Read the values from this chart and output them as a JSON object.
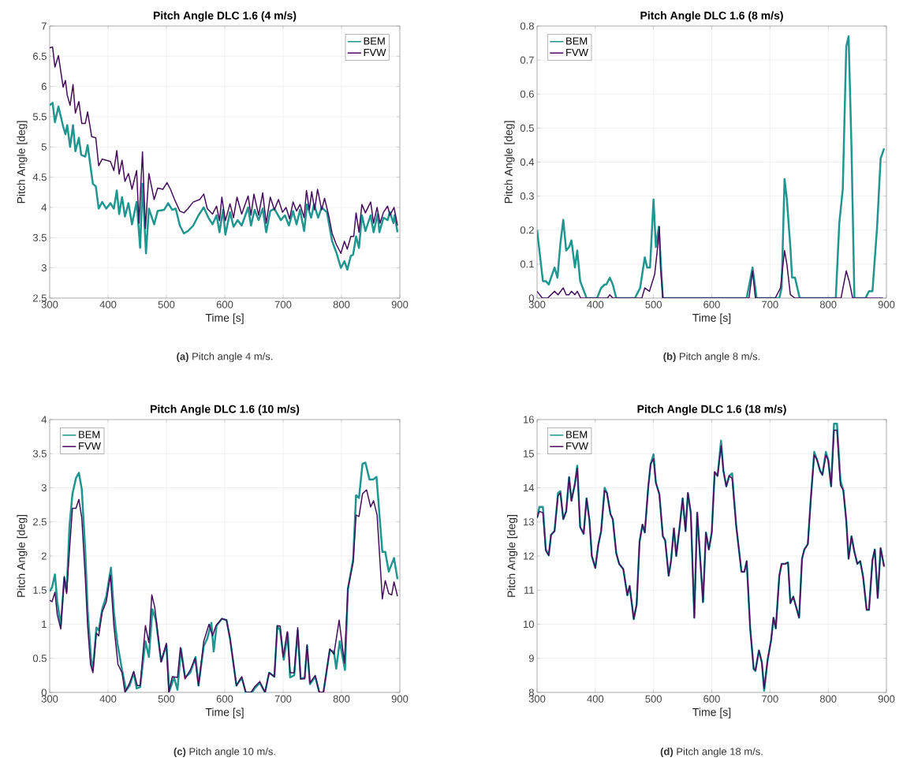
{
  "chart_data": [
    {
      "type": "line",
      "title": "Pitch Angle DLC 1.6 (4 m/s)",
      "xlabel": "Time [s]",
      "ylabel": "Pitch Angle [deg]",
      "annotations": [
        "**(a)** Pitch angle 4 m/s."
      ],
      "xlim": [
        300,
        900
      ],
      "ylim": [
        2.5,
        7
      ],
      "xticks": [
        300,
        400,
        500,
        600,
        700,
        800,
        900
      ],
      "yticks": [
        2.5,
        3,
        3.5,
        4,
        4.5,
        5,
        5.5,
        6,
        6.5,
        7
      ],
      "grid": true,
      "legend": "top right",
      "series": [
        {
          "name": "BEM",
          "color": "#209690",
          "x": [
            300,
            305,
            309,
            315,
            323,
            327,
            330,
            335,
            340,
            344,
            350,
            354,
            361,
            365,
            374,
            379,
            384,
            390,
            397,
            404,
            410,
            415,
            419,
            424,
            429,
            435,
            441,
            449,
            455,
            459,
            465,
            470,
            479,
            485,
            496,
            503,
            510,
            516,
            523,
            530,
            537,
            546,
            555,
            564,
            572,
            579,
            586,
            591,
            597,
            601,
            609,
            615,
            622,
            629,
            640,
            645,
            651,
            658,
            665,
            671,
            678,
            685,
            696,
            703,
            710,
            717,
            723,
            729,
            736,
            741,
            748,
            753,
            760,
            766,
            775,
            784,
            791,
            799,
            805,
            810,
            816,
            820,
            825,
            830,
            835,
            841,
            850,
            855,
            862,
            865,
            872,
            879,
            883,
            889,
            891,
            896
          ],
          "values": [
            5.69,
            5.73,
            5.41,
            5.67,
            5.34,
            5.21,
            5.36,
            5.0,
            5.36,
            4.93,
            5.15,
            4.87,
            4.84,
            5.03,
            4.39,
            4.35,
            3.98,
            4.09,
            3.98,
            4.07,
            3.98,
            4.28,
            3.89,
            4.17,
            3.85,
            4.07,
            3.72,
            4.09,
            3.33,
            4.39,
            3.24,
            3.98,
            3.72,
            3.94,
            3.96,
            4.07,
            3.96,
            3.98,
            3.7,
            3.57,
            3.61,
            3.7,
            3.87,
            4.0,
            3.83,
            3.72,
            3.87,
            3.59,
            3.96,
            3.55,
            3.92,
            3.68,
            3.79,
            3.7,
            4.0,
            3.7,
            3.96,
            3.79,
            3.98,
            3.59,
            3.94,
            3.98,
            3.79,
            3.87,
            3.7,
            3.94,
            3.72,
            3.96,
            3.61,
            4.05,
            3.83,
            4.05,
            3.83,
            4.0,
            3.92,
            3.44,
            3.26,
            3.0,
            3.11,
            2.97,
            3.2,
            3.22,
            3.52,
            3.33,
            3.87,
            3.61,
            3.87,
            3.59,
            3.89,
            3.59,
            3.83,
            3.79,
            3.92,
            3.74,
            3.87,
            3.59
          ]
        },
        {
          "name": "FVW",
          "color": "#450d5c",
          "x": [
            300,
            305,
            309,
            315,
            323,
            327,
            330,
            335,
            340,
            344,
            350,
            355,
            361,
            365,
            372,
            379,
            384,
            390,
            397,
            404,
            410,
            415,
            419,
            424,
            429,
            435,
            441,
            449,
            453,
            459,
            464,
            470,
            479,
            485,
            494,
            501,
            507,
            514,
            523,
            530,
            537,
            546,
            557,
            564,
            570,
            579,
            586,
            591,
            595,
            601,
            609,
            615,
            621,
            629,
            640,
            645,
            650,
            658,
            665,
            671,
            678,
            685,
            692,
            699,
            705,
            711,
            717,
            723,
            729,
            736,
            740,
            745,
            749,
            754,
            759,
            766,
            771,
            778,
            784,
            791,
            799,
            805,
            810,
            816,
            821,
            825,
            830,
            835,
            841,
            850,
            855,
            861,
            866,
            872,
            879,
            883,
            890,
            896
          ],
          "values": [
            6.64,
            6.65,
            6.32,
            6.51,
            5.99,
            6.1,
            5.86,
            5.69,
            6.03,
            5.56,
            5.75,
            5.39,
            5.39,
            5.58,
            5.17,
            5.15,
            4.69,
            4.8,
            4.78,
            4.76,
            4.61,
            4.94,
            4.55,
            4.78,
            4.43,
            4.56,
            4.3,
            4.61,
            3.74,
            4.92,
            3.65,
            4.56,
            4.13,
            4.32,
            4.3,
            4.41,
            4.3,
            4.13,
            3.94,
            3.91,
            3.98,
            4.09,
            4.13,
            4.22,
            3.98,
            3.89,
            4.02,
            3.78,
            4.17,
            3.78,
            4.06,
            3.83,
            4.17,
            3.89,
            4.19,
            3.87,
            4.22,
            3.87,
            4.24,
            3.74,
            4.17,
            3.96,
            4.13,
            3.92,
            4.0,
            3.81,
            4.09,
            3.94,
            4.05,
            3.83,
            4.28,
            3.96,
            4.26,
            3.96,
            4.3,
            3.96,
            4.15,
            3.87,
            3.57,
            3.39,
            3.24,
            3.44,
            3.31,
            3.52,
            3.52,
            3.91,
            3.59,
            4.05,
            3.91,
            4.09,
            3.74,
            4.0,
            3.74,
            3.92,
            4.02,
            3.87,
            4.0,
            3.7
          ]
        }
      ]
    },
    {
      "type": "line",
      "title": "Pitch Angle DLC 1.6 (8 m/s)",
      "xlabel": "Time [s]",
      "ylabel": "Pitch Angle [deg]",
      "annotations": [
        "**(b)** Pitch angle 8 m/s."
      ],
      "xlim": [
        300,
        900
      ],
      "ylim": [
        0,
        0.8
      ],
      "xticks": [
        300,
        400,
        500,
        600,
        700,
        800,
        900
      ],
      "yticks": [
        0,
        0.1,
        0.2,
        0.3,
        0.4,
        0.5,
        0.6,
        0.7,
        0.8
      ],
      "grid": true,
      "legend": "top left",
      "series": [
        {
          "name": "BEM",
          "color": "#209690",
          "x": [
            300,
            304,
            310,
            315,
            320,
            324,
            330,
            335,
            340,
            345,
            350,
            355,
            359,
            365,
            369,
            374,
            385,
            403,
            410,
            416,
            419,
            425,
            430,
            436,
            468,
            477,
            485,
            489,
            494,
            500,
            504,
            509,
            516,
            660,
            670,
            677,
            716,
            720,
            725,
            729,
            735,
            738,
            743,
            751,
            813,
            819,
            825,
            831,
            835,
            840,
            845,
            864,
            870,
            876,
            884,
            890,
            896
          ],
          "values": [
            0.2,
            0.14,
            0.05,
            0.05,
            0.04,
            0.06,
            0.09,
            0.06,
            0.16,
            0.23,
            0.14,
            0.15,
            0.17,
            0.09,
            0.14,
            0.05,
            0,
            0,
            0.03,
            0.04,
            0.04,
            0.06,
            0.04,
            0,
            0,
            0.03,
            0.12,
            0.09,
            0.09,
            0.29,
            0.15,
            0.21,
            0,
            0,
            0.09,
            0,
            0,
            0.03,
            0.35,
            0.29,
            0.15,
            0.06,
            0.06,
            0,
            0,
            0.22,
            0.32,
            0.74,
            0.77,
            0.44,
            0,
            0,
            0.02,
            0.02,
            0.21,
            0.41,
            0.44
          ]
        },
        {
          "name": "FVW",
          "color": "#450d5c",
          "x": [
            300,
            309,
            318,
            330,
            336,
            345,
            350,
            355,
            359,
            365,
            369,
            375,
            421,
            425,
            430,
            480,
            485,
            493,
            502,
            507,
            510,
            512,
            516,
            664,
            670,
            675,
            709,
            718,
            725,
            729,
            735,
            743,
            822,
            831,
            836,
            842,
            894
          ],
          "values": [
            0.02,
            0,
            0,
            0.02,
            0.01,
            0.03,
            0.01,
            0.01,
            0.02,
            0.01,
            0.02,
            0,
            0,
            0.01,
            0,
            0,
            0.03,
            0.02,
            0.07,
            0.15,
            0.21,
            0.09,
            0,
            0,
            0.08,
            0,
            0,
            0.03,
            0.14,
            0.1,
            0.01,
            0,
            0,
            0.08,
            0.05,
            0,
            0
          ]
        }
      ]
    },
    {
      "type": "line",
      "title": "Pitch Angle DLC 1.6 (10 m/s)",
      "xlabel": "Time [s]",
      "ylabel": "Pitch Angle [deg]",
      "annotations": [
        "**(c)** Pitch angle 10 m/s."
      ],
      "xlim": [
        300,
        900
      ],
      "ylim": [
        0,
        4
      ],
      "xticks": [
        300,
        400,
        500,
        600,
        700,
        800,
        900
      ],
      "yticks": [
        0,
        0.5,
        1,
        1.5,
        2,
        2.5,
        3,
        3.5,
        4
      ],
      "grid": true,
      "legend": "top left",
      "series": [
        {
          "name": "BEM",
          "color": "#209690",
          "x": [
            300,
            304,
            309,
            313,
            319,
            325,
            329,
            334,
            339,
            345,
            350,
            355,
            361,
            365,
            371,
            374,
            380,
            384,
            390,
            397,
            405,
            410,
            416,
            424,
            431,
            437,
            444,
            449,
            455,
            464,
            470,
            476,
            482,
            491,
            500,
            505,
            513,
            519,
            525,
            532,
            541,
            550,
            555,
            564,
            570,
            577,
            581,
            586,
            595,
            603,
            609,
            620,
            629,
            636,
            647,
            651,
            660,
            669,
            676,
            685,
            690,
            695,
            701,
            708,
            712,
            719,
            725,
            730,
            737,
            741,
            746,
            755,
            762,
            769,
            780,
            787,
            791,
            797,
            806,
            811,
            820,
            825,
            830,
            836,
            841,
            848,
            854,
            860,
            870,
            875,
            881,
            890,
            896
          ],
          "values": [
            1.48,
            1.54,
            1.73,
            1.33,
            0.98,
            1.68,
            1.48,
            2.45,
            2.91,
            3.14,
            3.22,
            2.98,
            2.06,
            1.22,
            0.48,
            0.33,
            0.95,
            0.91,
            1.22,
            1.41,
            1.83,
            1.18,
            0.72,
            0.33,
            0.03,
            0.1,
            0.29,
            0.06,
            0.08,
            0.75,
            0.52,
            1.22,
            1.06,
            0.45,
            0.7,
            0.02,
            0.22,
            0.04,
            0.64,
            0.22,
            0.29,
            0.52,
            0.1,
            0.68,
            0.79,
            1.02,
            0.6,
            0.98,
            1.08,
            1.06,
            0.79,
            0.1,
            0.22,
            0,
            0,
            0.06,
            0.14,
            0,
            0.29,
            0.23,
            0.97,
            0.91,
            0.48,
            0.87,
            0.22,
            0.25,
            0.91,
            0.2,
            0.22,
            0.68,
            0.12,
            0.23,
            0,
            0,
            0.62,
            0.6,
            0.35,
            0.75,
            0.33,
            1.52,
            1.95,
            2.89,
            2.85,
            3.35,
            3.37,
            3.12,
            3.12,
            3.16,
            2.06,
            2.06,
            1.77,
            1.97,
            1.66
          ]
        },
        {
          "name": "FVW",
          "color": "#450d5c",
          "x": [
            300,
            304,
            309,
            313,
            319,
            325,
            329,
            334,
            339,
            345,
            350,
            355,
            361,
            365,
            370,
            374,
            380,
            384,
            390,
            397,
            404,
            410,
            417,
            424,
            429,
            437,
            444,
            450,
            455,
            464,
            470,
            475,
            480,
            491,
            500,
            504,
            510,
            519,
            524,
            532,
            541,
            549,
            555,
            564,
            573,
            579,
            585,
            595,
            603,
            609,
            620,
            629,
            636,
            645,
            651,
            660,
            669,
            676,
            685,
            690,
            695,
            700,
            707,
            712,
            719,
            725,
            730,
            737,
            741,
            746,
            755,
            762,
            769,
            780,
            787,
            796,
            805,
            811,
            820,
            825,
            830,
            836,
            843,
            850,
            855,
            861,
            870,
            875,
            881,
            886,
            890,
            896
          ],
          "values": [
            1.35,
            1.33,
            1.47,
            1.14,
            0.93,
            1.7,
            1.45,
            2.1,
            2.7,
            2.7,
            2.83,
            2.56,
            1.68,
            0.98,
            0.41,
            0.29,
            0.87,
            0.83,
            1.18,
            1.33,
            1.72,
            0.98,
            0.41,
            0.29,
            0,
            0.14,
            0.31,
            0.1,
            0.1,
            0.98,
            0.73,
            1.43,
            1.25,
            0.45,
            0.72,
            0,
            0.23,
            0.22,
            0.66,
            0.2,
            0.33,
            0.5,
            0.1,
            0.75,
            1.0,
            0.83,
            0.98,
            1.08,
            1.06,
            0.79,
            0.1,
            0.23,
            0,
            0,
            0.08,
            0.16,
            0,
            0.29,
            0.23,
            0.98,
            0.97,
            0.52,
            0.89,
            0.29,
            0.29,
            0.95,
            0.2,
            0.2,
            0.7,
            0.14,
            0.25,
            0,
            0,
            0.64,
            0.56,
            1.06,
            0.43,
            1.52,
            1.91,
            2.6,
            2.58,
            2.91,
            2.97,
            2.72,
            2.81,
            2.6,
            1.37,
            1.64,
            1.45,
            1.43,
            1.62,
            1.41
          ]
        }
      ]
    },
    {
      "type": "line",
      "title": "Pitch Angle DLC 1.6 (18 m/s)",
      "xlabel": "Time [s]",
      "ylabel": "Pitch Angle [deg]",
      "annotations": [
        "**(d)** Pitch angle 18 m/s."
      ],
      "xlim": [
        300,
        900
      ],
      "ylim": [
        8,
        16
      ],
      "xticks": [
        300,
        400,
        500,
        600,
        700,
        800,
        900
      ],
      "yticks": [
        8,
        9,
        10,
        11,
        12,
        13,
        14,
        15,
        16
      ],
      "grid": true,
      "legend": "top left",
      "series": [
        {
          "name": "BEM",
          "color": "#209690",
          "x": [
            300,
            304,
            310,
            315,
            320,
            324,
            330,
            336,
            340,
            345,
            350,
            355,
            359,
            365,
            369,
            374,
            380,
            385,
            390,
            394,
            400,
            405,
            410,
            416,
            420,
            426,
            430,
            436,
            441,
            448,
            455,
            459,
            466,
            471,
            476,
            481,
            485,
            491,
            495,
            500,
            504,
            510,
            516,
            520,
            526,
            530,
            535,
            539,
            545,
            550,
            555,
            559,
            564,
            570,
            575,
            580,
            585,
            590,
            595,
            600,
            605,
            610,
            616,
            620,
            625,
            630,
            635,
            642,
            651,
            656,
            660,
            666,
            672,
            675,
            681,
            686,
            690,
            696,
            702,
            706,
            710,
            716,
            720,
            726,
            731,
            735,
            740,
            750,
            755,
            759,
            765,
            770,
            776,
            781,
            786,
            790,
            796,
            800,
            805,
            810,
            815,
            821,
            826,
            831,
            835,
            840,
            845,
            850,
            855,
            860,
            866,
            870,
            876,
            880,
            885,
            890,
            896
          ],
          "values": [
            13.12,
            13.44,
            13.44,
            12.2,
            12.02,
            12.62,
            12.73,
            13.85,
            13.9,
            13.08,
            13.31,
            14.31,
            13.62,
            14.12,
            14.65,
            12.85,
            12.65,
            13.69,
            13.04,
            12.0,
            11.65,
            12.31,
            12.73,
            14.0,
            13.85,
            13.23,
            13.08,
            12.08,
            11.77,
            11.62,
            10.85,
            11.12,
            10.15,
            10.58,
            12.42,
            12.92,
            12.69,
            14.04,
            14.69,
            14.98,
            14.15,
            13.81,
            12.58,
            12.46,
            11.42,
            11.85,
            12.81,
            12.0,
            12.88,
            13.69,
            12.73,
            13.85,
            13.27,
            10.19,
            13.27,
            11.96,
            10.65,
            12.69,
            12.19,
            12.69,
            14.46,
            14.35,
            15.38,
            14.5,
            14.04,
            14.35,
            14.42,
            12.88,
            11.54,
            11.54,
            11.85,
            9.88,
            8.69,
            8.63,
            9.23,
            8.88,
            8.05,
            8.96,
            9.54,
            10.19,
            9.88,
            11.42,
            11.77,
            11.77,
            11.81,
            10.62,
            10.81,
            10.19,
            11.92,
            12.19,
            12.35,
            13.65,
            15.05,
            14.81,
            14.5,
            14.38,
            15.05,
            14.81,
            14.04,
            15.88,
            15.88,
            14.22,
            13.92,
            13.04,
            11.92,
            12.58,
            12.12,
            11.77,
            11.85,
            11.38,
            10.42,
            10.42,
            11.88,
            12.19,
            10.77,
            12.23,
            11.69
          ]
        },
        {
          "name": "FVW",
          "color": "#450d5c",
          "x": [
            300,
            304,
            310,
            315,
            320,
            324,
            330,
            336,
            340,
            345,
            350,
            355,
            359,
            365,
            369,
            374,
            380,
            385,
            390,
            394,
            400,
            405,
            410,
            416,
            420,
            426,
            430,
            436,
            441,
            448,
            455,
            459,
            466,
            471,
            476,
            481,
            485,
            491,
            495,
            500,
            504,
            510,
            516,
            520,
            526,
            530,
            535,
            539,
            545,
            550,
            555,
            559,
            564,
            570,
            575,
            580,
            585,
            590,
            595,
            600,
            605,
            610,
            616,
            620,
            625,
            630,
            635,
            642,
            651,
            656,
            660,
            666,
            672,
            675,
            681,
            686,
            690,
            696,
            702,
            706,
            710,
            716,
            720,
            726,
            731,
            735,
            740,
            750,
            755,
            759,
            765,
            770,
            776,
            781,
            786,
            790,
            796,
            800,
            805,
            810,
            815,
            821,
            826,
            831,
            835,
            840,
            845,
            850,
            855,
            860,
            866,
            870,
            876,
            880,
            885,
            890,
            896
          ],
          "values": [
            13.12,
            13.31,
            13.27,
            12.15,
            12.02,
            12.62,
            12.73,
            13.77,
            13.85,
            13.08,
            13.31,
            14.31,
            13.62,
            14.12,
            14.58,
            12.85,
            12.65,
            13.69,
            13.04,
            12.0,
            11.65,
            12.31,
            12.73,
            13.92,
            13.85,
            13.23,
            13.08,
            12.08,
            11.77,
            11.62,
            10.85,
            11.12,
            10.15,
            10.58,
            12.42,
            12.92,
            12.69,
            14.04,
            14.69,
            14.85,
            14.15,
            13.81,
            12.58,
            12.46,
            11.42,
            11.85,
            12.81,
            12.0,
            12.88,
            13.69,
            12.73,
            13.85,
            13.27,
            10.19,
            13.27,
            11.96,
            10.65,
            12.69,
            12.19,
            12.69,
            14.46,
            14.35,
            15.23,
            14.5,
            14.04,
            14.35,
            14.27,
            12.88,
            11.54,
            11.54,
            11.85,
            9.88,
            8.69,
            8.65,
            9.23,
            8.88,
            8.12,
            8.96,
            9.54,
            10.19,
            9.88,
            11.42,
            11.77,
            11.77,
            11.81,
            10.62,
            10.81,
            10.19,
            11.92,
            12.19,
            12.35,
            13.65,
            14.96,
            14.81,
            14.5,
            14.38,
            14.96,
            14.81,
            14.04,
            15.69,
            15.69,
            14.08,
            13.92,
            13.04,
            11.92,
            12.58,
            12.12,
            11.77,
            11.85,
            11.38,
            10.42,
            10.42,
            11.88,
            12.19,
            10.77,
            12.23,
            11.69
          ]
        }
      ]
    }
  ]
}
